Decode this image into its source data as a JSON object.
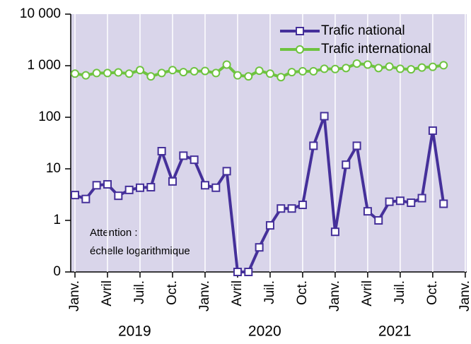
{
  "chart_data": {
    "type": "line",
    "categories": [
      "Janv.",
      null,
      null,
      "Avril",
      null,
      null,
      "Juil.",
      null,
      null,
      "Oct.",
      null,
      null,
      "Janv.",
      null,
      null,
      "Avril",
      null,
      null,
      "Juil.",
      null,
      null,
      "Oct.",
      null,
      null,
      "Janv.",
      null,
      null,
      "Avril",
      null,
      null,
      "Juil.",
      null,
      null,
      "Oct.",
      null,
      null,
      "Janv."
    ],
    "year_labels": [
      "2019",
      "2020",
      "2021"
    ],
    "series": [
      {
        "name": "Trafic national",
        "color": "#45309a",
        "marker": "square",
        "values": [
          3.1,
          2.6,
          4.8,
          5.0,
          3.0,
          3.9,
          4.3,
          4.4,
          22,
          5.7,
          18,
          15,
          4.8,
          4.3,
          9,
          0.1,
          0.1,
          0.3,
          0.8,
          1.7,
          1.7,
          2.0,
          28,
          105,
          0.6,
          12,
          28,
          1.5,
          1.0,
          2.3,
          2.4,
          2.2,
          2.7,
          55,
          2.1,
          null,
          null
        ]
      },
      {
        "name": "Trafic international",
        "color": "#6ec33f",
        "marker": "circle",
        "values": [
          700,
          650,
          720,
          720,
          740,
          700,
          820,
          620,
          720,
          820,
          750,
          780,
          790,
          720,
          1050,
          650,
          620,
          800,
          700,
          600,
          750,
          780,
          780,
          870,
          860,
          900,
          1100,
          1050,
          900,
          960,
          870,
          850,
          920,
          950,
          1020,
          null,
          null
        ]
      }
    ],
    "log_scale": true,
    "ylim": [
      0.1,
      10000
    ],
    "yticks": [
      {
        "value": 0.1,
        "label": "0"
      },
      1,
      10,
      100,
      {
        "value": 1000,
        "label": "1 000"
      },
      {
        "value": 10000,
        "label": "10 000"
      }
    ],
    "grid": true,
    "legend": "upper right",
    "annotation": [
      "Attention :",
      "échelle logarithmique"
    ]
  }
}
